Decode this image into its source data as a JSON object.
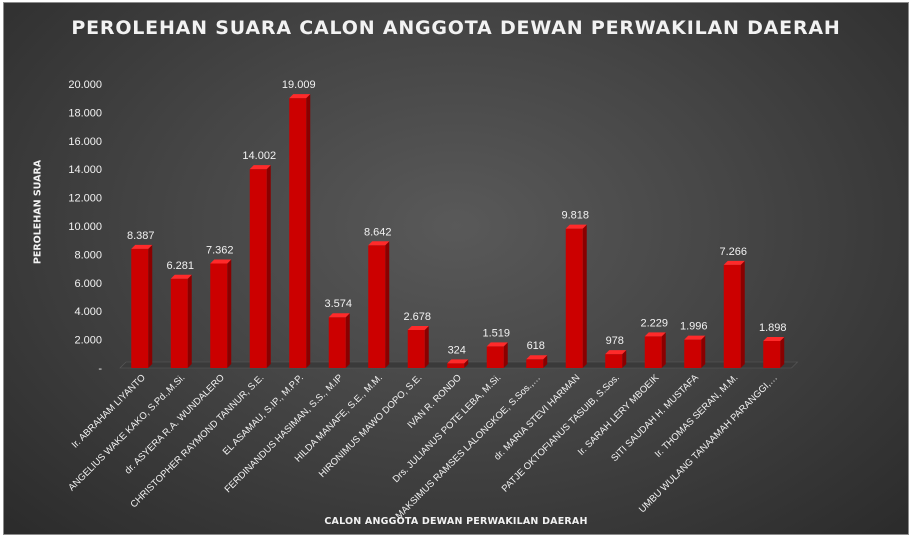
{
  "chart_data": {
    "type": "bar",
    "title": "PEROLEHAN SUARA CALON ANGGOTA DEWAN PERWAKILAN DAERAH",
    "xlabel": "CALON ANGGOTA DEWAN PERWAKILAN DAERAH",
    "ylabel": "PEROLEHAN SUARA",
    "ylim": [
      0,
      20000
    ],
    "yticks": [
      0,
      2000,
      4000,
      6000,
      8000,
      10000,
      12000,
      14000,
      16000,
      18000,
      20000
    ],
    "ytick_labels": [
      "-",
      "2.000",
      "4.000",
      "6.000",
      "8.000",
      "10.000",
      "12.000",
      "14.000",
      "16.000",
      "18.000",
      "20.000"
    ],
    "categories": [
      "Ir. ABRAHAM LIYANTO",
      "ANGELIUS WAKE KAKO, S.Pd.,M.Si.",
      "dr. ASYERA R.A. WUNDALERO",
      "CHRISTOPHER RAYMOND TANNUR, S.E.",
      "EL ASAMAU, S.IP., M.P.P.",
      "FERDINANDUS HASIMAN, S.S., M.IP",
      "HILDA MANAFE, S.E., M.M.",
      "HIRONIMUS MAWO DOPO, S.E.",
      "IVAN R. RONDO",
      "Drs. JULIANUS POTE LEBA, M.Si.",
      "MAKSIMUS RAMSES LALONGKOE, S.Sos.,…",
      "dr. MARIA STEVI HARMAN",
      "PATJE OKTOFIANUS TASUIB, S.Sos.",
      "Ir. SARAH LERY MBOEIK",
      "SITI SAUDAH H. MUSTAFA",
      "Ir. THOMAS SERAN, M.M.",
      "UMBU WULANG TANAAMAH PARANGGI,…"
    ],
    "values": [
      8387,
      6281,
      7362,
      14002,
      19009,
      3574,
      8642,
      2678,
      324,
      1519,
      618,
      9818,
      978,
      2229,
      1996,
      7266,
      1898
    ],
    "data_labels": [
      "8.387",
      "6.281",
      "7.362",
      "14.002",
      "19.009",
      "3.574",
      "8.642",
      "2.678",
      "324",
      "1.519",
      "618",
      "9.818",
      "978",
      "2.229",
      "1.996",
      "7.266",
      "1.898"
    ],
    "grid": false,
    "legend": "none",
    "bar_style": "3d",
    "colors": {
      "bar_front": "#cc0000",
      "bar_side": "#8a0000",
      "bar_top": "#ff2a2a",
      "text": "#f2f2f2",
      "background": "#454545"
    }
  }
}
